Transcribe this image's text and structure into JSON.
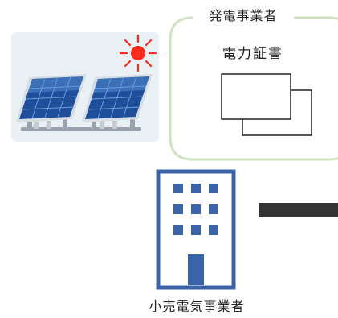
{
  "producer": {
    "title": "発電事業者",
    "certificate_label": "電力証書"
  },
  "retailer": {
    "label": "小売電気事業者"
  },
  "icons": {
    "solar": "solar-panels-icon",
    "sun": "sun-icon",
    "certificate": "certificate-documents-icon",
    "building": "office-building-icon"
  },
  "colors": {
    "frame_border": "#cfe3c0",
    "card_background": "#e9f1f4",
    "building": "#3a63a8",
    "sun": "#ff2b1c",
    "connector": "#333333"
  }
}
